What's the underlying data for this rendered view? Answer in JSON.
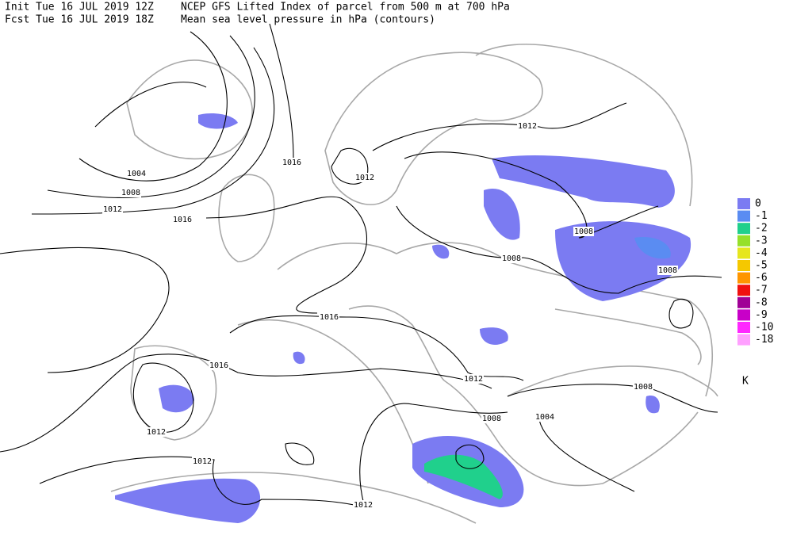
{
  "header": {
    "init": "Init  Tue 16 JUL 2019 12Z",
    "fcst": "Fcst Tue 16 JUL 2019 18Z",
    "title": "NCEP GFS Lifted Index of parcel from 500 m at 700 hPa",
    "subtitle": "Mean sea level pressure in hPa (contours)"
  },
  "legend": {
    "unit": "K",
    "items": [
      {
        "label": "0",
        "color": "#7b7bf2"
      },
      {
        "label": "-1",
        "color": "#5a8cf2"
      },
      {
        "label": "-2",
        "color": "#20d08c"
      },
      {
        "label": "-3",
        "color": "#96e02a"
      },
      {
        "label": "-4",
        "color": "#e6e61e"
      },
      {
        "label": "-5",
        "color": "#f5c800"
      },
      {
        "label": "-6",
        "color": "#ff9600"
      },
      {
        "label": "-7",
        "color": "#f01010"
      },
      {
        "label": "-8",
        "color": "#a00096"
      },
      {
        "label": "-9",
        "color": "#c800c8"
      },
      {
        "label": "-10",
        "color": "#ff28ff"
      },
      {
        "label": "-18",
        "color": "#ffa0ff"
      }
    ]
  },
  "contour_labels": [
    "1004",
    "1008",
    "1012",
    "1016",
    "1012",
    "1016",
    "1012",
    "1008",
    "1008",
    "1008",
    "1016",
    "1016",
    "1012",
    "1008",
    "1008",
    "1004",
    "1012",
    "1012",
    "1012"
  ]
}
